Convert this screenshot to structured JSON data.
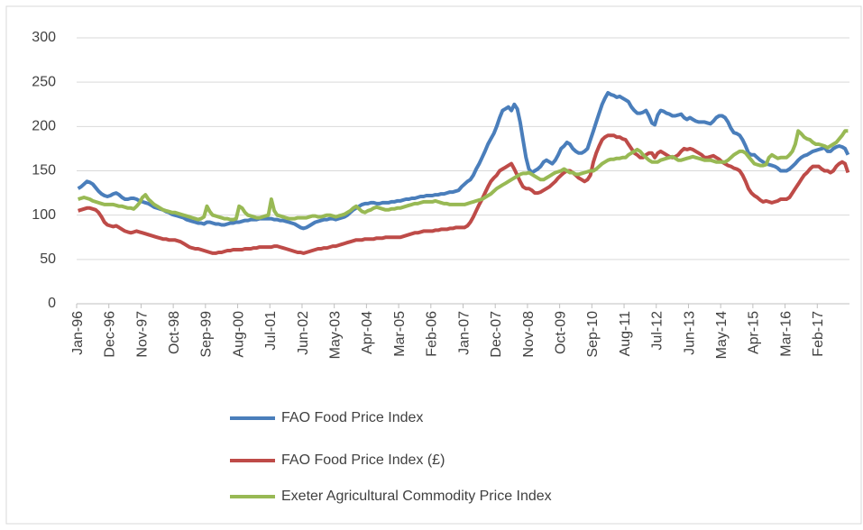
{
  "chart_data": {
    "type": "line",
    "categories": [
      "Jan-96",
      null,
      null,
      null,
      null,
      null,
      null,
      null,
      null,
      null,
      null,
      "Dec-96",
      null,
      null,
      null,
      null,
      null,
      null,
      null,
      null,
      null,
      null,
      "Nov-97",
      null,
      null,
      null,
      null,
      null,
      null,
      null,
      null,
      null,
      null,
      "Oct-98",
      null,
      null,
      null,
      null,
      null,
      null,
      null,
      null,
      null,
      null,
      "Sep-99",
      null,
      null,
      null,
      null,
      null,
      null,
      null,
      null,
      null,
      null,
      "Aug-00",
      null,
      null,
      null,
      null,
      null,
      null,
      null,
      null,
      null,
      null,
      "Jul-01",
      null,
      null,
      null,
      null,
      null,
      null,
      null,
      null,
      null,
      null,
      "Jun-02",
      null,
      null,
      null,
      null,
      null,
      null,
      null,
      null,
      null,
      null,
      "May-03",
      null,
      null,
      null,
      null,
      null,
      null,
      null,
      null,
      null,
      null,
      "Apr-04",
      null,
      null,
      null,
      null,
      null,
      null,
      null,
      null,
      null,
      null,
      "Mar-05",
      null,
      null,
      null,
      null,
      null,
      null,
      null,
      null,
      null,
      null,
      "Feb-06",
      null,
      null,
      null,
      null,
      null,
      null,
      null,
      null,
      null,
      null,
      "Jan-07",
      null,
      null,
      null,
      null,
      null,
      null,
      null,
      null,
      null,
      null,
      "Dec-07",
      null,
      null,
      null,
      null,
      null,
      null,
      null,
      null,
      null,
      null,
      "Nov-08",
      null,
      null,
      null,
      null,
      null,
      null,
      null,
      null,
      null,
      null,
      "Oct-09",
      null,
      null,
      null,
      null,
      null,
      null,
      null,
      null,
      null,
      null,
      "Sep-10",
      null,
      null,
      null,
      null,
      null,
      null,
      null,
      null,
      null,
      null,
      "Aug-11",
      null,
      null,
      null,
      null,
      null,
      null,
      null,
      null,
      null,
      null,
      "Jul-12",
      null,
      null,
      null,
      null,
      null,
      null,
      null,
      null,
      null,
      null,
      "Jun-13",
      null,
      null,
      null,
      null,
      null,
      null,
      null,
      null,
      null,
      null,
      "May-14",
      null,
      null,
      null,
      null,
      null,
      null,
      null,
      null,
      null,
      null,
      "Apr-15",
      null,
      null,
      null,
      null,
      null,
      null,
      null,
      null,
      null,
      null,
      "Mar-16",
      null,
      null,
      null,
      null,
      null,
      null,
      null,
      null,
      null,
      null,
      "Feb-17",
      null,
      null,
      null,
      null,
      null,
      null,
      null,
      null,
      null,
      null
    ],
    "series": [
      {
        "name": "FAO Food Price Index",
        "color": "#4a7ebb",
        "values": [
          130,
          132,
          135,
          138,
          137,
          135,
          131,
          127,
          124,
          122,
          121,
          122,
          124,
          125,
          123,
          120,
          118,
          118,
          119,
          119,
          118,
          116,
          115,
          114,
          113,
          111,
          109,
          108,
          107,
          106,
          104,
          103,
          101,
          100,
          99,
          98,
          97,
          95,
          94,
          93,
          92,
          91,
          91,
          90,
          92,
          92,
          91,
          90,
          90,
          89,
          89,
          90,
          91,
          91,
          92,
          92,
          93,
          94,
          94,
          95,
          95,
          95,
          96,
          96,
          96,
          96,
          96,
          95,
          95,
          94,
          94,
          93,
          92,
          91,
          90,
          88,
          86,
          85,
          86,
          88,
          90,
          92,
          93,
          94,
          95,
          95,
          96,
          96,
          95,
          96,
          97,
          98,
          100,
          103,
          106,
          108,
          110,
          112,
          113,
          113,
          114,
          114,
          113,
          113,
          114,
          114,
          114,
          115,
          115,
          116,
          116,
          117,
          118,
          118,
          119,
          119,
          120,
          121,
          121,
          122,
          122,
          122,
          123,
          123,
          124,
          124,
          125,
          126,
          126,
          127,
          128,
          132,
          135,
          138,
          140,
          145,
          152,
          158,
          165,
          172,
          180,
          186,
          192,
          200,
          210,
          218,
          220,
          222,
          218,
          225,
          220,
          205,
          185,
          165,
          152,
          148,
          150,
          152,
          155,
          160,
          162,
          160,
          158,
          162,
          168,
          175,
          178,
          182,
          180,
          175,
          172,
          170,
          170,
          172,
          175,
          185,
          195,
          205,
          215,
          225,
          232,
          238,
          236,
          235,
          233,
          234,
          232,
          230,
          228,
          222,
          218,
          215,
          215,
          216,
          218,
          212,
          204,
          202,
          213,
          218,
          217,
          215,
          214,
          212,
          212,
          213,
          214,
          210,
          208,
          210,
          208,
          206,
          205,
          205,
          205,
          204,
          203,
          206,
          210,
          212,
          212,
          210,
          205,
          198,
          193,
          192,
          190,
          185,
          178,
          170,
          168,
          168,
          165,
          162,
          160,
          158,
          157,
          156,
          155,
          153,
          150,
          150,
          150,
          152,
          155,
          158,
          162,
          165,
          167,
          168,
          170,
          172,
          173,
          174,
          175,
          176,
          172,
          172,
          175,
          177,
          178,
          177,
          175,
          168
        ]
      },
      {
        "name": "FAO Food Price Index (£)",
        "color": "#be4b48",
        "values": [
          105,
          106,
          107,
          108,
          108,
          107,
          106,
          103,
          98,
          92,
          89,
          88,
          87,
          88,
          86,
          84,
          82,
          81,
          80,
          81,
          82,
          81,
          80,
          79,
          78,
          77,
          76,
          75,
          74,
          73,
          73,
          72,
          72,
          72,
          71,
          70,
          68,
          66,
          64,
          63,
          62,
          62,
          61,
          60,
          59,
          58,
          57,
          57,
          58,
          58,
          59,
          60,
          60,
          61,
          61,
          61,
          61,
          62,
          62,
          62,
          63,
          63,
          64,
          64,
          64,
          64,
          64,
          65,
          65,
          64,
          63,
          62,
          61,
          60,
          59,
          58,
          58,
          57,
          58,
          59,
          60,
          61,
          62,
          62,
          63,
          63,
          64,
          65,
          65,
          66,
          67,
          68,
          69,
          70,
          71,
          72,
          72,
          72,
          73,
          73,
          73,
          73,
          74,
          74,
          74,
          75,
          75,
          75,
          75,
          75,
          75,
          76,
          77,
          78,
          79,
          80,
          80,
          81,
          82,
          82,
          82,
          82,
          83,
          83,
          84,
          84,
          84,
          85,
          85,
          86,
          86,
          86,
          86,
          88,
          92,
          98,
          105,
          112,
          118,
          125,
          132,
          138,
          142,
          145,
          150,
          152,
          154,
          156,
          158,
          152,
          145,
          138,
          132,
          130,
          130,
          128,
          125,
          125,
          126,
          128,
          130,
          132,
          135,
          138,
          142,
          145,
          148,
          150,
          150,
          148,
          145,
          142,
          140,
          138,
          140,
          145,
          160,
          170,
          178,
          185,
          188,
          190,
          190,
          190,
          188,
          188,
          186,
          185,
          180,
          175,
          170,
          168,
          165,
          165,
          168,
          170,
          170,
          165,
          170,
          172,
          170,
          168,
          166,
          165,
          166,
          168,
          172,
          175,
          174,
          175,
          174,
          172,
          170,
          168,
          165,
          165,
          166,
          167,
          165,
          163,
          160,
          158,
          156,
          155,
          153,
          152,
          150,
          145,
          138,
          130,
          125,
          122,
          120,
          117,
          115,
          116,
          115,
          114,
          115,
          116,
          118,
          118,
          118,
          120,
          125,
          130,
          135,
          140,
          145,
          148,
          152,
          155,
          155,
          155,
          152,
          150,
          150,
          148,
          150,
          155,
          158,
          160,
          158,
          148
        ]
      },
      {
        "name": "Exeter Agricultural Commodity Price Index",
        "color": "#98b954",
        "values": [
          118,
          119,
          120,
          119,
          118,
          116,
          115,
          114,
          113,
          112,
          112,
          112,
          112,
          111,
          110,
          110,
          109,
          108,
          108,
          107,
          110,
          114,
          120,
          123,
          118,
          115,
          112,
          110,
          108,
          106,
          105,
          104,
          103,
          103,
          102,
          101,
          100,
          99,
          98,
          97,
          96,
          95,
          96,
          98,
          110,
          104,
          100,
          99,
          98,
          97,
          96,
          96,
          95,
          95,
          96,
          110,
          108,
          103,
          100,
          99,
          98,
          97,
          97,
          98,
          99,
          100,
          118,
          105,
          100,
          99,
          98,
          97,
          96,
          96,
          96,
          97,
          97,
          97,
          97,
          98,
          99,
          99,
          98,
          98,
          99,
          100,
          100,
          99,
          98,
          99,
          100,
          101,
          103,
          105,
          108,
          110,
          107,
          104,
          103,
          105,
          106,
          108,
          109,
          108,
          107,
          106,
          106,
          107,
          107,
          108,
          108,
          109,
          110,
          111,
          112,
          113,
          113,
          114,
          115,
          115,
          115,
          115,
          116,
          115,
          114,
          113,
          113,
          112,
          112,
          112,
          112,
          112,
          112,
          113,
          114,
          115,
          116,
          117,
          118,
          120,
          122,
          124,
          127,
          130,
          132,
          134,
          136,
          138,
          140,
          142,
          144,
          146,
          147,
          147,
          148,
          146,
          144,
          142,
          140,
          140,
          142,
          144,
          146,
          148,
          149,
          150,
          152,
          150,
          148,
          148,
          146,
          146,
          147,
          148,
          149,
          150,
          150,
          152,
          155,
          158,
          160,
          162,
          163,
          163,
          164,
          164,
          165,
          165,
          168,
          170,
          172,
          174,
          172,
          168,
          165,
          162,
          160,
          160,
          160,
          162,
          163,
          164,
          165,
          166,
          164,
          162,
          162,
          163,
          164,
          165,
          166,
          165,
          164,
          163,
          162,
          162,
          162,
          161,
          160,
          160,
          160,
          160,
          162,
          165,
          168,
          170,
          172,
          172,
          170,
          166,
          162,
          158,
          157,
          156,
          156,
          157,
          165,
          168,
          166,
          164,
          165,
          165,
          165,
          168,
          172,
          180,
          195,
          192,
          188,
          186,
          185,
          182,
          180,
          180,
          179,
          178,
          176,
          178,
          180,
          182,
          186,
          190,
          195,
          195
        ]
      }
    ],
    "ylim": [
      0,
      300
    ],
    "yticks": [
      0,
      50,
      100,
      150,
      200,
      250,
      300
    ],
    "grid": true
  }
}
